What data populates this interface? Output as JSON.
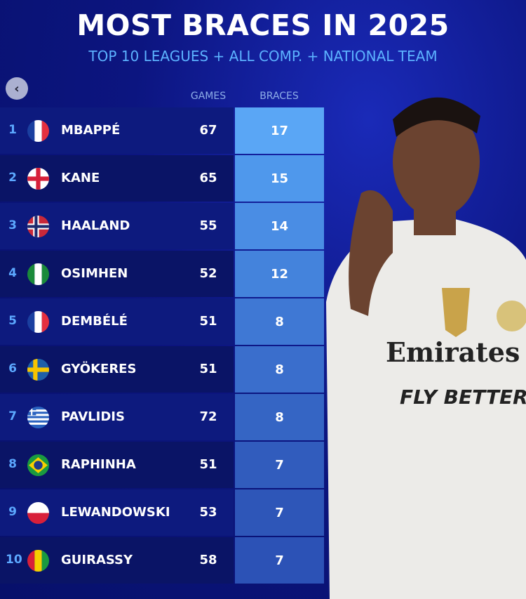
{
  "header": {
    "title": "MOST BRACES IN 2025",
    "subtitle": "TOP 10 LEAGUES + ALL COMP. + NATIONAL TEAM"
  },
  "chart_data": {
    "type": "table",
    "columns": [
      "",
      "",
      "",
      "GAMES",
      "BRACES"
    ],
    "rows": [
      {
        "rank": "1",
        "flag": "france",
        "name": "MBAPPÉ",
        "games": 67,
        "braces": 17
      },
      {
        "rank": "2",
        "flag": "england",
        "name": "KANE",
        "games": 65,
        "braces": 15
      },
      {
        "rank": "3",
        "flag": "norway",
        "name": "HAALAND",
        "games": 55,
        "braces": 14
      },
      {
        "rank": "4",
        "flag": "nigeria",
        "name": "OSIMHEN",
        "games": 52,
        "braces": 12
      },
      {
        "rank": "5",
        "flag": "france",
        "name": "DEMBÉLÉ",
        "games": 51,
        "braces": 8
      },
      {
        "rank": "6",
        "flag": "sweden",
        "name": "GYÖKERES",
        "games": 51,
        "braces": 8
      },
      {
        "rank": "7",
        "flag": "greece",
        "name": "PAVLIDIS",
        "games": 72,
        "braces": 8
      },
      {
        "rank": "8",
        "flag": "brazil",
        "name": "RAPHINHA",
        "games": 51,
        "braces": 7
      },
      {
        "rank": "9",
        "flag": "poland",
        "name": "LEWANDOWSKI",
        "games": 53,
        "braces": 7
      },
      {
        "rank": "10",
        "flag": "guinea",
        "name": "GUIRASSY",
        "games": 58,
        "braces": 7
      }
    ]
  },
  "photo": {
    "sponsor": "Emirates",
    "tagline": "FLY BETTER"
  },
  "overlay": {
    "back_icon": "chevron-left-icon"
  },
  "colors": {
    "accent": "#5cb2ff",
    "braces_top": "#5aa6f5",
    "braces_bottom": "#2c52b6"
  }
}
